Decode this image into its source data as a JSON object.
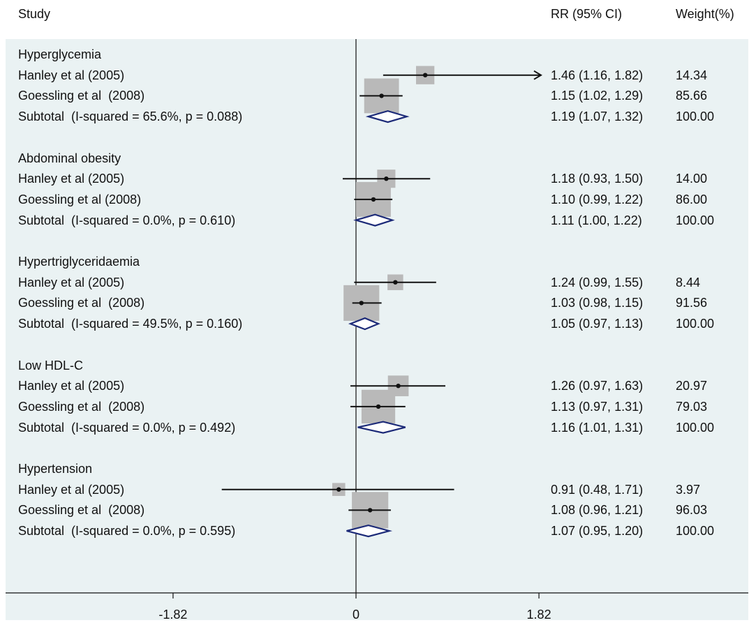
{
  "columns": {
    "study": "Study",
    "estimate": "RR (95% CI)",
    "weight": "Weight(%)"
  },
  "chart_data": {
    "type": "forest",
    "measure": "RR",
    "scale": "log",
    "x_ticks": [
      {
        "value": -1.82,
        "label": "-1.82"
      },
      {
        "value": 0,
        "label": "0"
      },
      {
        "value": 1.82,
        "label": "1.82"
      }
    ],
    "null_line": 0,
    "colors": {
      "marker": "#111111",
      "box": "#b9b9b9",
      "diamond": "#1c2a78"
    },
    "groups": [
      {
        "name": "Hyperglycemia",
        "studies": [
          {
            "study": "Hanley et al (2005)",
            "rr": 1.46,
            "lo": 1.16,
            "hi": 1.82,
            "ci_text": "1.46 (1.16, 1.82)",
            "weight": "14.34",
            "arrow_right": true
          },
          {
            "study": "Goessling et al  (2008)",
            "rr": 1.15,
            "lo": 1.02,
            "hi": 1.29,
            "ci_text": "1.15 (1.02, 1.29)",
            "weight": "85.66"
          }
        ],
        "subtotal": {
          "label": "Subtotal  (I-squared = 65.6%, p = 0.088)",
          "rr": 1.19,
          "lo": 1.07,
          "hi": 1.32,
          "ci_text": "1.19 (1.07, 1.32)",
          "weight": "100.00"
        }
      },
      {
        "name": "Abdominal obesity",
        "studies": [
          {
            "study": "Hanley et al (2005)",
            "rr": 1.18,
            "lo": 0.93,
            "hi": 1.5,
            "ci_text": "1.18 (0.93, 1.50)",
            "weight": "14.00"
          },
          {
            "study": "Goessling et al (2008)",
            "rr": 1.1,
            "lo": 0.99,
            "hi": 1.22,
            "ci_text": "1.10 (0.99, 1.22)",
            "weight": "86.00"
          }
        ],
        "subtotal": {
          "label": "Subtotal  (I-squared = 0.0%, p = 0.610)",
          "rr": 1.11,
          "lo": 1.0,
          "hi": 1.22,
          "ci_text": "1.11 (1.00, 1.22)",
          "weight": "100.00"
        }
      },
      {
        "name": "Hypertriglyceridaemia",
        "studies": [
          {
            "study": "Hanley et al (2005)",
            "rr": 1.24,
            "lo": 0.99,
            "hi": 1.55,
            "ci_text": "1.24 (0.99, 1.55)",
            "weight": "8.44"
          },
          {
            "study": "Goessling et al  (2008)",
            "rr": 1.03,
            "lo": 0.98,
            "hi": 1.15,
            "ci_text": "1.03 (0.98, 1.15)",
            "weight": "91.56"
          }
        ],
        "subtotal": {
          "label": "Subtotal  (I-squared = 49.5%, p = 0.160)",
          "rr": 1.05,
          "lo": 0.97,
          "hi": 1.13,
          "ci_text": "1.05 (0.97, 1.13)",
          "weight": "100.00"
        }
      },
      {
        "name": "Low HDL-C",
        "studies": [
          {
            "study": "Hanley et al (2005)",
            "rr": 1.26,
            "lo": 0.97,
            "hi": 1.63,
            "ci_text": "1.26 (0.97, 1.63)",
            "weight": "20.97"
          },
          {
            "study": "Goessling et al  (2008)",
            "rr": 1.13,
            "lo": 0.97,
            "hi": 1.31,
            "ci_text": "1.13 (0.97, 1.31)",
            "weight": "79.03"
          }
        ],
        "subtotal": {
          "label": "Subtotal  (I-squared = 0.0%, p = 0.492)",
          "rr": 1.16,
          "lo": 1.01,
          "hi": 1.31,
          "ci_text": "1.16 (1.01, 1.31)",
          "weight": "100.00"
        }
      },
      {
        "name": "Hypertension",
        "studies": [
          {
            "study": "Hanley et al (2005)",
            "rr": 0.91,
            "lo": 0.48,
            "hi": 1.71,
            "ci_text": "0.91 (0.48, 1.71)",
            "weight": "3.97"
          },
          {
            "study": "Goessling et al  (2008)",
            "rr": 1.08,
            "lo": 0.96,
            "hi": 1.21,
            "ci_text": "1.08 (0.96, 1.21)",
            "weight": "96.03"
          }
        ],
        "subtotal": {
          "label": "Subtotal  (I-squared = 0.0%, p = 0.595)",
          "rr": 1.07,
          "lo": 0.95,
          "hi": 1.2,
          "ci_text": "1.07 (0.95, 1.20)",
          "weight": "100.00"
        }
      }
    ]
  }
}
